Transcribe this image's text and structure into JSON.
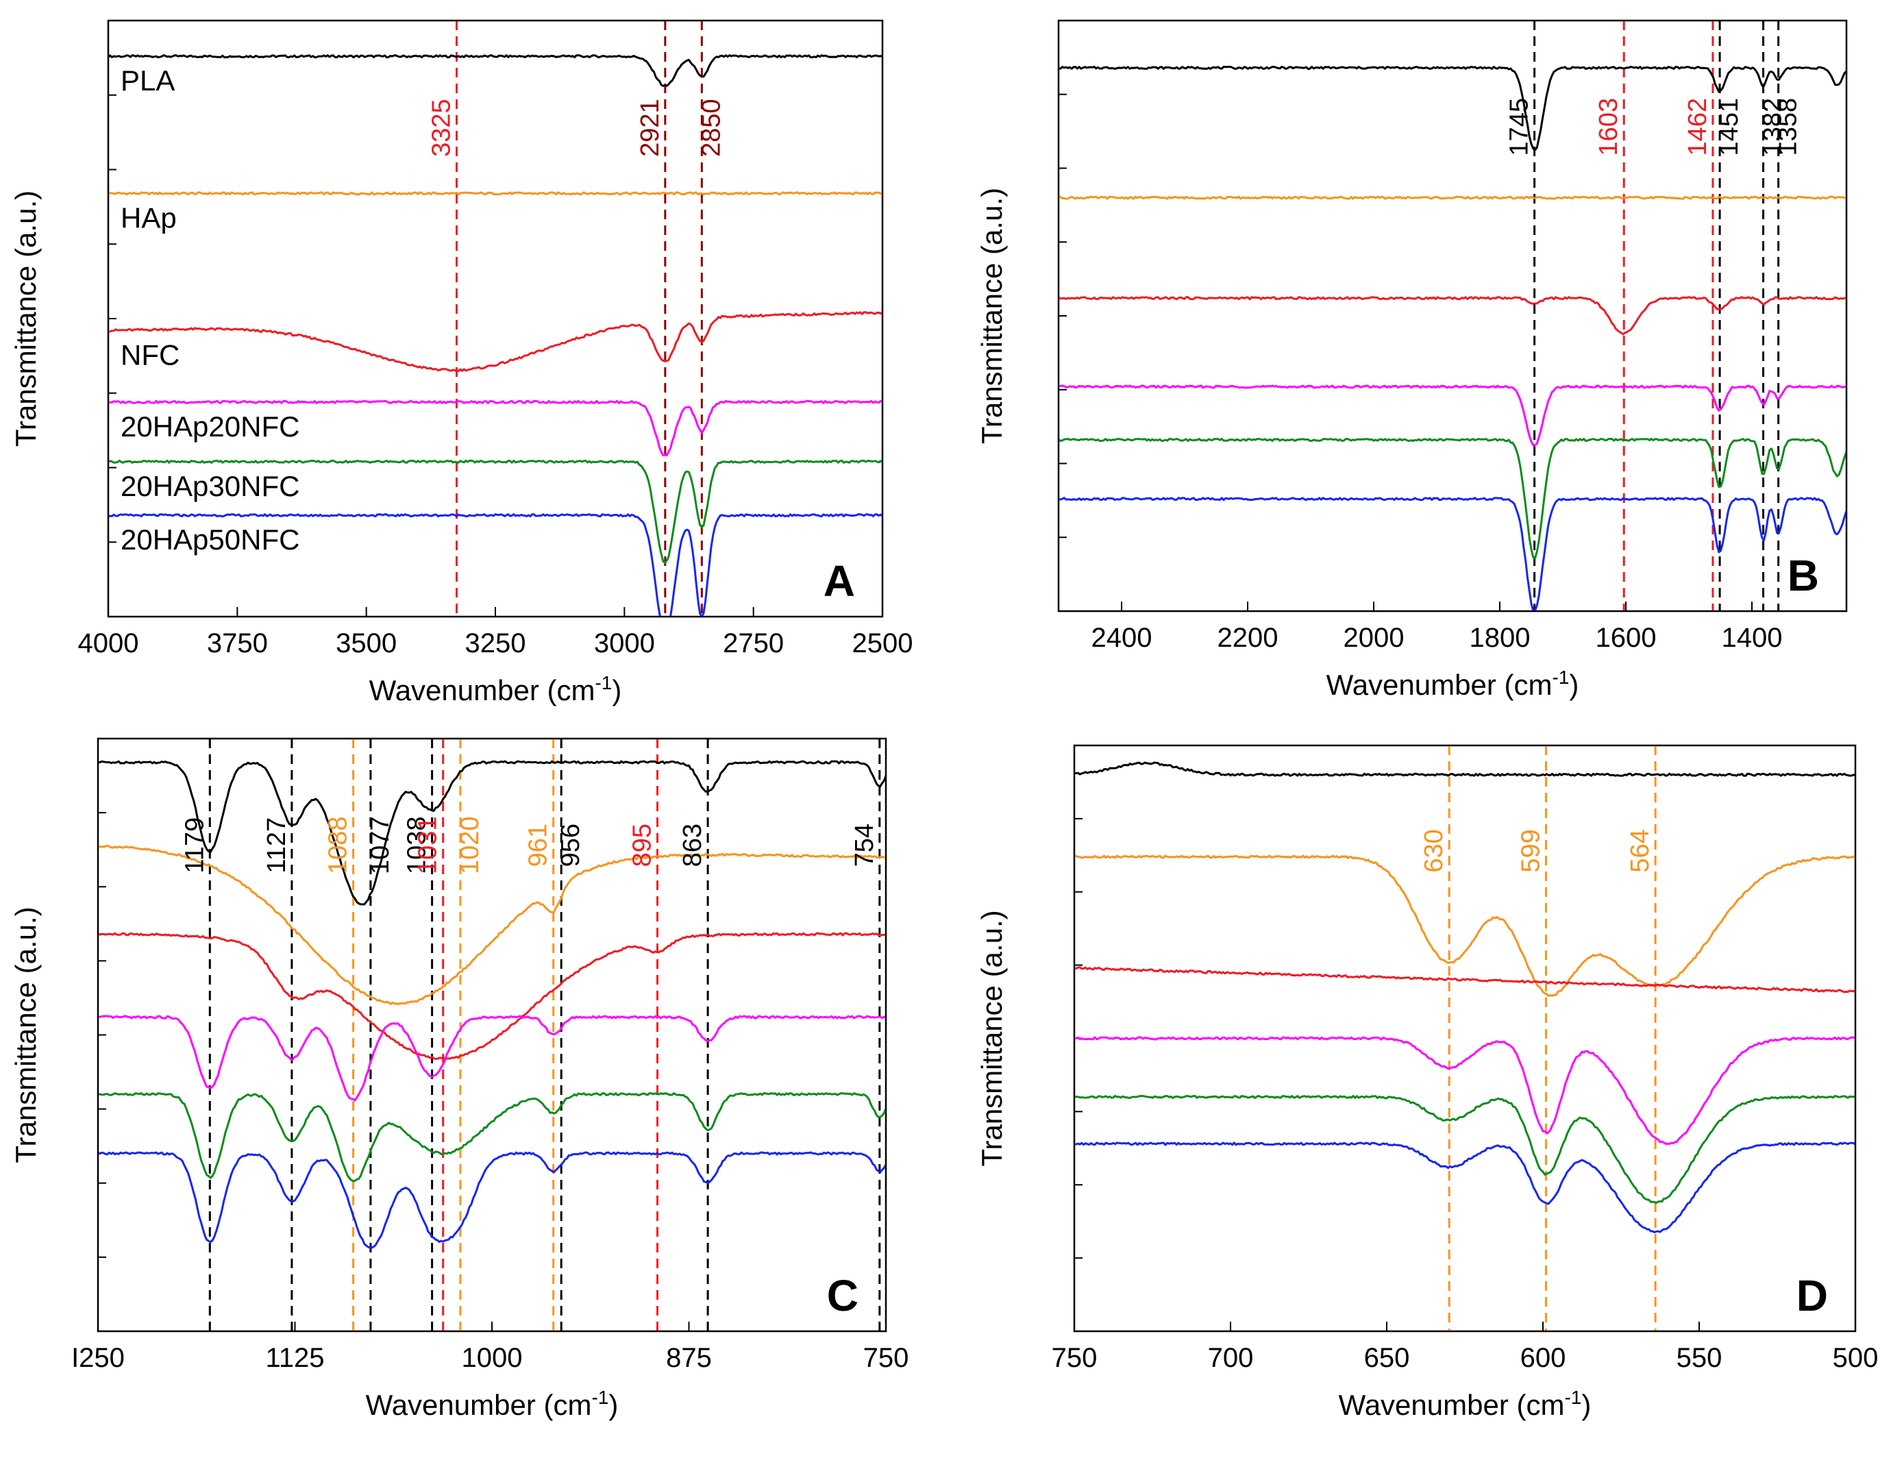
{
  "figure": {
    "ylabel": "Transmittance",
    "yunit": "(a.u.)",
    "xlabel": "Wavenumber",
    "xunit_base": "(cm",
    "xunit_exp": "-1",
    "xunit_close": ")"
  },
  "series_colors": {
    "PLA": "#000000",
    "HAp": "#f7941d",
    "NFC": "#ee1c25",
    "20HAp20NFC": "#ff00ff",
    "20HAp30NFC": "#0b8c1c",
    "20HAp50NFC": "#1526f5"
  },
  "line_colors": {
    "black": "#000000",
    "red": "#ee1c25",
    "orange": "#f7941d",
    "darkred": "#8b0000"
  },
  "chart_data": [
    {
      "panel": "A",
      "type": "line",
      "xlim": [
        4000,
        2500
      ],
      "ylim": [
        0,
        100
      ],
      "xticks": [
        4000,
        3750,
        3500,
        3250,
        3000,
        2750,
        2500
      ],
      "series": [
        {
          "name": "PLA",
          "label": "PLA",
          "offset": 94,
          "baseline": 94,
          "bands": [
            [
              2921,
              20,
              5
            ],
            [
              2850,
              12,
              3.5
            ]
          ]
        },
        {
          "name": "HAp",
          "label": "HAp",
          "offset": 71,
          "baseline": 71,
          "bands": []
        },
        {
          "name": "NFC",
          "label": "NFC",
          "offset": 48,
          "baseline": 51,
          "bands": [
            [
              3325,
              170,
              8
            ],
            [
              2921,
              20,
              7
            ],
            [
              2850,
              12,
              4
            ]
          ]
        },
        {
          "name": "20HAp20NFC",
          "label": "20HAp20NFC",
          "offset": 36,
          "baseline": 36,
          "bands": [
            [
              2921,
              18,
              9
            ],
            [
              2850,
              12,
              5
            ]
          ]
        },
        {
          "name": "20HAp30NFC",
          "label": "20HAp30NFC",
          "offset": 26,
          "baseline": 26,
          "bands": [
            [
              2921,
              18,
              17
            ],
            [
              2850,
              12,
              11
            ]
          ]
        },
        {
          "name": "20HAp50NFC",
          "label": "20HAp50NFC",
          "offset": 17,
          "baseline": 17,
          "bands": [
            [
              2921,
              18,
              20
            ],
            [
              2850,
              12,
              17
            ]
          ]
        }
      ],
      "vlines": [
        {
          "x": 3325,
          "color": "red",
          "label": "3325",
          "label_side": "left"
        },
        {
          "x": 2921,
          "color": "darkred",
          "label": "2921",
          "label_side": "left"
        },
        {
          "x": 2850,
          "color": "darkred",
          "label": "2850",
          "label_side": "right"
        }
      ]
    },
    {
      "panel": "B",
      "type": "line",
      "xlim": [
        2500,
        1250
      ],
      "ylim": [
        0,
        100
      ],
      "xticks": [
        2400,
        2200,
        2000,
        1800,
        1600,
        1400
      ],
      "series": [
        {
          "name": "PLA",
          "offset": 92,
          "baseline": 92,
          "bands": [
            [
              1745,
              13,
              14
            ],
            [
              1451,
              8,
              4
            ],
            [
              1382,
              6,
              3
            ],
            [
              1358,
              6,
              2
            ],
            [
              1265,
              8,
              3
            ]
          ]
        },
        {
          "name": "HAp",
          "offset": 70,
          "baseline": 70,
          "bands": []
        },
        {
          "name": "NFC",
          "offset": 53,
          "baseline": 53,
          "bands": [
            [
              1745,
              10,
              1
            ],
            [
              1603,
              22,
              6
            ],
            [
              1451,
              10,
              2
            ],
            [
              1382,
              6,
              1
            ]
          ]
        },
        {
          "name": "20HAp20NFC",
          "offset": 38,
          "baseline": 38,
          "bands": [
            [
              1745,
              13,
              10
            ],
            [
              1451,
              8,
              4
            ],
            [
              1382,
              6,
              3
            ],
            [
              1358,
              6,
              2
            ]
          ]
        },
        {
          "name": "20HAp30NFC",
          "offset": 29,
          "baseline": 29,
          "bands": [
            [
              1745,
              13,
              20
            ],
            [
              1451,
              8,
              8
            ],
            [
              1382,
              6,
              6
            ],
            [
              1358,
              6,
              5
            ],
            [
              1265,
              10,
              6
            ]
          ]
        },
        {
          "name": "20HAp50NFC",
          "offset": 19,
          "baseline": 19,
          "bands": [
            [
              1745,
              13,
              19
            ],
            [
              1451,
              8,
              9
            ],
            [
              1382,
              6,
              7
            ],
            [
              1358,
              6,
              6
            ],
            [
              1265,
              10,
              6
            ]
          ]
        }
      ],
      "vlines": [
        {
          "x": 1745,
          "color": "black",
          "label": "1745",
          "label_side": "left"
        },
        {
          "x": 1603,
          "color": "red",
          "label": "1603",
          "label_side": "left"
        },
        {
          "x": 1462,
          "color": "red",
          "label": "1462",
          "label_side": "left"
        },
        {
          "x": 1451,
          "color": "black",
          "label": "1451",
          "label_side": "right"
        },
        {
          "x": 1382,
          "color": "black",
          "label": "1382",
          "label_side": "right"
        },
        {
          "x": 1358,
          "color": "black",
          "label": "1358",
          "label_side": "right"
        }
      ]
    },
    {
      "panel": "C",
      "type": "line",
      "xlim": [
        1250,
        750
      ],
      "ylim": [
        0,
        100
      ],
      "xticks": [
        1250,
        1125,
        1000,
        875,
        750
      ],
      "xtick_labels": [
        "I250",
        "1125",
        "1000",
        "875",
        "750"
      ],
      "series": [
        {
          "name": "PLA",
          "offset": 96,
          "baseline": 96,
          "bands": [
            [
              1179,
              8,
              15
            ],
            [
              1127,
              8,
              10
            ],
            [
              1088,
              15,
              16
            ],
            [
              1077,
              12,
              10
            ],
            [
              1038,
              10,
              8
            ],
            [
              863,
              6,
              5
            ],
            [
              754,
              4,
              4
            ]
          ]
        },
        {
          "name": "HAp",
          "offset": 82,
          "baseline": 80,
          "bands": [
            [
              1060,
              58,
              26
            ],
            [
              961,
              5,
              4
            ]
          ]
        },
        {
          "name": "NFC",
          "offset": 67,
          "baseline": 67,
          "bands": [
            [
              1031,
              55,
              21
            ],
            [
              1127,
              12,
              6
            ],
            [
              895,
              8,
              2
            ]
          ]
        },
        {
          "name": "20HAp20NFC",
          "offset": 53,
          "baseline": 53,
          "bands": [
            [
              1179,
              8,
              12
            ],
            [
              1127,
              8,
              7
            ],
            [
              1088,
              10,
              14
            ],
            [
              1038,
              10,
              10
            ],
            [
              961,
              5,
              3
            ],
            [
              863,
              6,
              4
            ]
          ]
        },
        {
          "name": "20HAp30NFC",
          "offset": 40,
          "baseline": 40,
          "bands": [
            [
              1179,
              8,
              14
            ],
            [
              1127,
              8,
              8
            ],
            [
              1088,
              10,
              14
            ],
            [
              1031,
              25,
              10
            ],
            [
              961,
              5,
              3
            ],
            [
              863,
              6,
              6
            ],
            [
              754,
              4,
              4
            ]
          ]
        },
        {
          "name": "20HAp50NFC",
          "offset": 30,
          "baseline": 30,
          "bands": [
            [
              1179,
              8,
              15
            ],
            [
              1127,
              8,
              8
            ],
            [
              1077,
              12,
              16
            ],
            [
              1038,
              10,
              12
            ],
            [
              1020,
              10,
              10
            ],
            [
              961,
              5,
              3
            ],
            [
              863,
              6,
              5
            ],
            [
              754,
              4,
              3
            ]
          ]
        }
      ],
      "vlines": [
        {
          "x": 1179,
          "color": "black",
          "label": "1179",
          "label_side": "left"
        },
        {
          "x": 1127,
          "color": "black",
          "label": "1127",
          "label_side": "left"
        },
        {
          "x": 1088,
          "color": "orange",
          "label": "1088",
          "label_side": "left"
        },
        {
          "x": 1077,
          "color": "black",
          "label": "1077",
          "label_side": "right"
        },
        {
          "x": 1038,
          "color": "black",
          "label": "1038",
          "label_side": "left"
        },
        {
          "x": 1031,
          "color": "red",
          "label": "1031",
          "label_side": "left"
        },
        {
          "x": 1020,
          "color": "orange",
          "label": "1020",
          "label_side": "right"
        },
        {
          "x": 961,
          "color": "orange",
          "label": "961",
          "label_side": "left"
        },
        {
          "x": 956,
          "color": "black",
          "label": "956",
          "label_side": "right"
        },
        {
          "x": 895,
          "color": "red",
          "label": "895",
          "label_side": "left"
        },
        {
          "x": 863,
          "color": "black",
          "label": "863",
          "label_side": "left"
        },
        {
          "x": 754,
          "color": "black",
          "label": "754",
          "label_side": "left"
        }
      ]
    },
    {
      "panel": "D",
      "type": "line",
      "xlim": [
        750,
        500
      ],
      "ylim": [
        0,
        100
      ],
      "xticks": [
        750,
        700,
        650,
        600,
        550,
        500
      ],
      "series": [
        {
          "name": "PLA",
          "offset": 95,
          "baseline": 95,
          "bands": [
            [
              727,
              10,
              -2
            ]
          ]
        },
        {
          "name": "HAp",
          "offset": 81,
          "baseline": 81,
          "bands": [
            [
              630,
              10,
              18
            ],
            [
              599,
              9,
              20
            ],
            [
              564,
              18,
              22
            ]
          ]
        },
        {
          "name": "NFC",
          "offset": 62,
          "baseline": 58,
          "bands": []
        },
        {
          "name": "20HAp20NFC",
          "offset": 50,
          "baseline": 50,
          "bands": [
            [
              630,
              7,
              5
            ],
            [
              599,
              5,
              16
            ],
            [
              560,
              12,
              18
            ]
          ]
        },
        {
          "name": "20HAp30NFC",
          "offset": 40,
          "baseline": 40,
          "bands": [
            [
              630,
              7,
              4
            ],
            [
              599,
              5,
              13
            ],
            [
              564,
              12,
              18
            ]
          ]
        },
        {
          "name": "20HAp50NFC",
          "offset": 32,
          "baseline": 32,
          "bands": [
            [
              630,
              7,
              4
            ],
            [
              599,
              5,
              10
            ],
            [
              564,
              12,
              15
            ]
          ]
        }
      ],
      "vlines": [
        {
          "x": 630,
          "color": "orange",
          "label": "630",
          "label_side": "left"
        },
        {
          "x": 599,
          "color": "orange",
          "label": "599",
          "label_side": "left"
        },
        {
          "x": 564,
          "color": "orange",
          "label": "564",
          "label_side": "left"
        }
      ]
    }
  ]
}
